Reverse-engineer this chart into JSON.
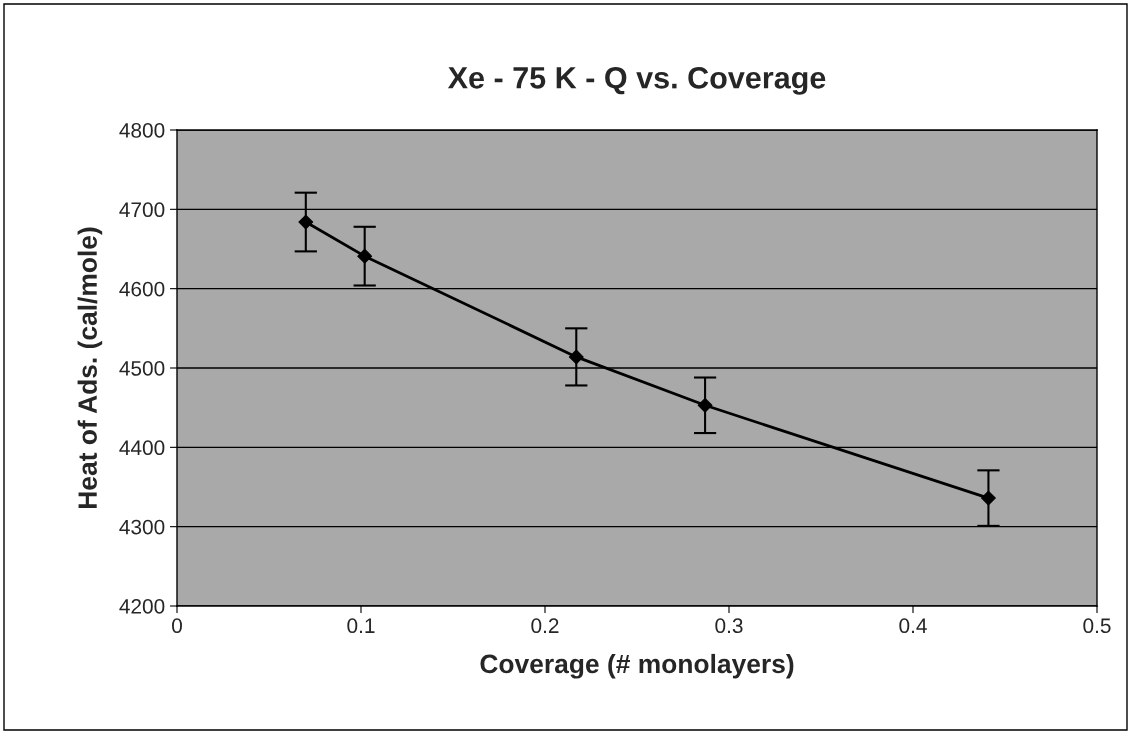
{
  "chart_data": {
    "type": "line",
    "title": "Xe - 75 K - Q vs. Coverage",
    "xlabel": "Coverage (# monolayers)",
    "ylabel": "Heat of Ads. (cal/mole)",
    "x": [
      0.07,
      0.102,
      0.217,
      0.287,
      0.441
    ],
    "series": [
      {
        "color": "#000000",
        "values": [
          4684,
          4641,
          4514,
          4453,
          4336
        ],
        "errors": [
          37,
          37,
          36,
          35,
          35
        ]
      }
    ],
    "xlim": [
      0,
      0.5
    ],
    "xticks": [
      0,
      0.1,
      0.2,
      0.3,
      0.4,
      0.5
    ],
    "ylim": [
      4200,
      4800
    ],
    "yticks": [
      4200,
      4300,
      4400,
      4500,
      4600,
      4700,
      4800
    ],
    "grid": "y",
    "marker": "diamond",
    "line_style": "solid",
    "legend": false
  }
}
